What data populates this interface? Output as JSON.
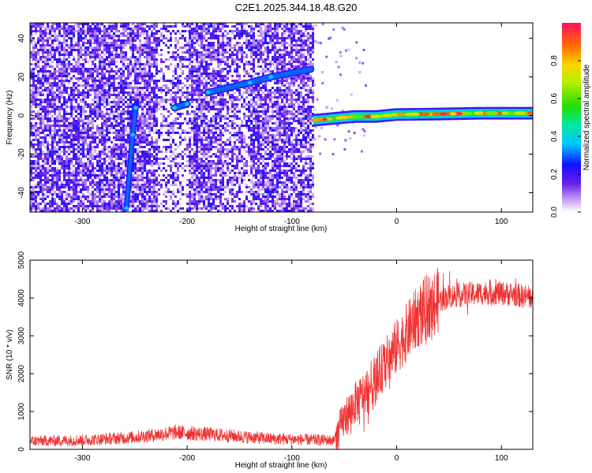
{
  "title": "C2E1.2025.344.18.48.G20",
  "chart_data": [
    {
      "type": "heatmap",
      "xlabel": "Height of straight line (km)",
      "ylabel": "Frequency (Hz)",
      "xlim": [
        -350,
        130
      ],
      "ylim": [
        -50,
        48
      ],
      "xticks": [
        -300,
        -200,
        -100,
        0,
        100
      ],
      "yticks": [
        -40,
        -20,
        0,
        20,
        40
      ],
      "colorbar": {
        "label": "Normalized spectral amplitude",
        "range": [
          0.0,
          1.0
        ],
        "ticks": [
          0.0,
          0.2,
          0.4,
          0.6,
          0.8
        ]
      },
      "noise_region": {
        "x_from": -350,
        "x_to": -80,
        "level": "low (0.0-0.3)"
      },
      "signal_ridges": [
        {
          "name": "doppler track",
          "points": [
            [
              -180,
              12
            ],
            [
              -140,
              17
            ],
            [
              -120,
              20
            ],
            [
              -100,
              22
            ],
            [
              -82,
              24
            ]
          ]
        },
        {
          "name": "early track",
          "points": [
            [
              -212,
              4
            ],
            [
              -200,
              6
            ]
          ]
        },
        {
          "name": "steep streak",
          "points": [
            [
              -258,
              -48
            ],
            [
              -252,
              -10
            ],
            [
              -249,
              4
            ]
          ]
        },
        {
          "name": "carrier",
          "points": [
            [
              -80,
              -2.5
            ],
            [
              -60,
              -1.5
            ],
            [
              -40,
              -0.5
            ],
            [
              -20,
              -0.5
            ],
            [
              0,
              0.5
            ],
            [
              40,
              0.8
            ],
            [
              80,
              1.2
            ],
            [
              130,
              1.2
            ]
          ]
        }
      ]
    },
    {
      "type": "line",
      "xlabel": "Height of straight line (km)",
      "ylabel": "SNR (10 * v/v)",
      "xlim": [
        -350,
        130
      ],
      "ylim": [
        0,
        5000
      ],
      "xticks": [
        -300,
        -200,
        -100,
        0,
        100
      ],
      "yticks": [
        0,
        1000,
        2000,
        3000,
        4000,
        5000
      ],
      "series": [
        {
          "name": "SNR",
          "color": "#ee3333",
          "trend": {
            "x": [
              -350,
              -300,
              -250,
              -210,
              -170,
              -120,
              -80,
              -60,
              -50,
              -40,
              -30,
              -20,
              -10,
              0,
              10,
              20,
              30,
              50,
              70,
              90,
              110,
              130
            ],
            "y": [
              220,
              240,
              320,
              450,
              380,
              280,
              250,
              240,
              800,
              1200,
              1500,
              1900,
              2300,
              2700,
              3100,
              3500,
              3800,
              4050,
              4100,
              4150,
              4100,
              4000
            ]
          }
        }
      ]
    }
  ]
}
